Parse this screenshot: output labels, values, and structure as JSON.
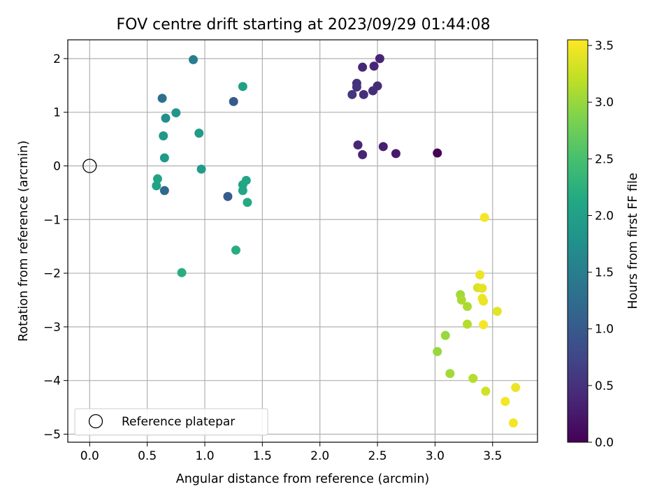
{
  "chart_data": {
    "type": "scatter",
    "title": "FOV centre drift starting at 2023/09/29 01:44:08",
    "xlabel": "Angular distance from reference (arcmin)",
    "ylabel": "Rotation from reference (arcmin)",
    "xlim": [
      -0.19,
      3.89
    ],
    "ylim": [
      -5.15,
      2.35
    ],
    "xticks": [
      0.0,
      0.5,
      1.0,
      1.5,
      2.0,
      2.5,
      3.0,
      3.5
    ],
    "xtick_labels": [
      "0.0",
      "0.5",
      "1.0",
      "1.5",
      "2.0",
      "2.5",
      "3.0",
      "3.5"
    ],
    "yticks": [
      -5,
      -4,
      -3,
      -2,
      -1,
      0,
      1,
      2
    ],
    "ytick_labels": [
      "−5",
      "−4",
      "−3",
      "−2",
      "−1",
      "0",
      "1",
      "2"
    ],
    "grid": true,
    "colormap": "viridis",
    "colorbar": {
      "label": "Hours from first FF file",
      "range": [
        0.0,
        3.55
      ],
      "ticks": [
        0.0,
        0.5,
        1.0,
        1.5,
        2.0,
        2.5,
        3.0,
        3.5
      ],
      "tick_labels": [
        "0.0",
        "0.5",
        "1.0",
        "1.5",
        "2.0",
        "2.5",
        "3.0",
        "3.5"
      ]
    },
    "legend": {
      "position": "lower-left",
      "entries": [
        "Reference platepar"
      ]
    },
    "reference_point": {
      "x": 0.0,
      "y": 0.0
    },
    "points": [
      {
        "x": 3.02,
        "y": 0.24,
        "hours": 0.0
      },
      {
        "x": 2.66,
        "y": 0.23,
        "hours": 0.25
      },
      {
        "x": 2.55,
        "y": 0.36,
        "hours": 0.3
      },
      {
        "x": 2.37,
        "y": 0.21,
        "hours": 0.35
      },
      {
        "x": 2.33,
        "y": 0.39,
        "hours": 0.4
      },
      {
        "x": 2.52,
        "y": 2.0,
        "hours": 0.35
      },
      {
        "x": 2.47,
        "y": 1.86,
        "hours": 0.38
      },
      {
        "x": 2.37,
        "y": 1.84,
        "hours": 0.4
      },
      {
        "x": 2.5,
        "y": 1.49,
        "hours": 0.42
      },
      {
        "x": 2.46,
        "y": 1.4,
        "hours": 0.45
      },
      {
        "x": 2.38,
        "y": 1.33,
        "hours": 0.48
      },
      {
        "x": 2.32,
        "y": 1.54,
        "hours": 0.5
      },
      {
        "x": 2.32,
        "y": 1.47,
        "hours": 0.52
      },
      {
        "x": 2.28,
        "y": 1.33,
        "hours": 0.55
      },
      {
        "x": 1.25,
        "y": 1.2,
        "hours": 1.0
      },
      {
        "x": 1.2,
        "y": -0.57,
        "hours": 1.05
      },
      {
        "x": 0.65,
        "y": -0.46,
        "hours": 1.2
      },
      {
        "x": 0.63,
        "y": 1.26,
        "hours": 1.3
      },
      {
        "x": 0.9,
        "y": 1.98,
        "hours": 1.5
      },
      {
        "x": 0.66,
        "y": 0.89,
        "hours": 1.75
      },
      {
        "x": 0.75,
        "y": 0.99,
        "hours": 1.85
      },
      {
        "x": 0.64,
        "y": 0.56,
        "hours": 1.9
      },
      {
        "x": 0.65,
        "y": 0.15,
        "hours": 1.9
      },
      {
        "x": 0.95,
        "y": 0.61,
        "hours": 1.95
      },
      {
        "x": 0.97,
        "y": -0.06,
        "hours": 1.95
      },
      {
        "x": 1.33,
        "y": 1.48,
        "hours": 2.0
      },
      {
        "x": 0.59,
        "y": -0.24,
        "hours": 2.05
      },
      {
        "x": 0.58,
        "y": -0.37,
        "hours": 2.05
      },
      {
        "x": 1.36,
        "y": -0.27,
        "hours": 2.1
      },
      {
        "x": 1.33,
        "y": -0.35,
        "hours": 2.1
      },
      {
        "x": 1.33,
        "y": -0.46,
        "hours": 2.1
      },
      {
        "x": 1.37,
        "y": -0.68,
        "hours": 2.15
      },
      {
        "x": 1.27,
        "y": -1.57,
        "hours": 2.2
      },
      {
        "x": 0.8,
        "y": -1.99,
        "hours": 2.2
      },
      {
        "x": 3.02,
        "y": -3.46,
        "hours": 3.0
      },
      {
        "x": 3.09,
        "y": -3.16,
        "hours": 3.0
      },
      {
        "x": 3.13,
        "y": -3.87,
        "hours": 3.05
      },
      {
        "x": 3.22,
        "y": -2.4,
        "hours": 3.05
      },
      {
        "x": 3.23,
        "y": -2.5,
        "hours": 3.1
      },
      {
        "x": 3.28,
        "y": -2.62,
        "hours": 3.1
      },
      {
        "x": 3.28,
        "y": -2.95,
        "hours": 3.15
      },
      {
        "x": 3.33,
        "y": -3.96,
        "hours": 3.15
      },
      {
        "x": 3.37,
        "y": -2.27,
        "hours": 3.35
      },
      {
        "x": 3.39,
        "y": -2.03,
        "hours": 3.45
      },
      {
        "x": 3.41,
        "y": -2.28,
        "hours": 3.4
      },
      {
        "x": 3.41,
        "y": -2.47,
        "hours": 3.45
      },
      {
        "x": 3.42,
        "y": -2.52,
        "hours": 3.45
      },
      {
        "x": 3.42,
        "y": -2.96,
        "hours": 3.5
      },
      {
        "x": 3.43,
        "y": -0.96,
        "hours": 3.5
      },
      {
        "x": 3.44,
        "y": -4.2,
        "hours": 3.3
      },
      {
        "x": 3.54,
        "y": -2.71,
        "hours": 3.4
      },
      {
        "x": 3.61,
        "y": -4.39,
        "hours": 3.5
      },
      {
        "x": 3.68,
        "y": -4.79,
        "hours": 3.5
      },
      {
        "x": 3.7,
        "y": -4.13,
        "hours": 3.45
      }
    ]
  }
}
